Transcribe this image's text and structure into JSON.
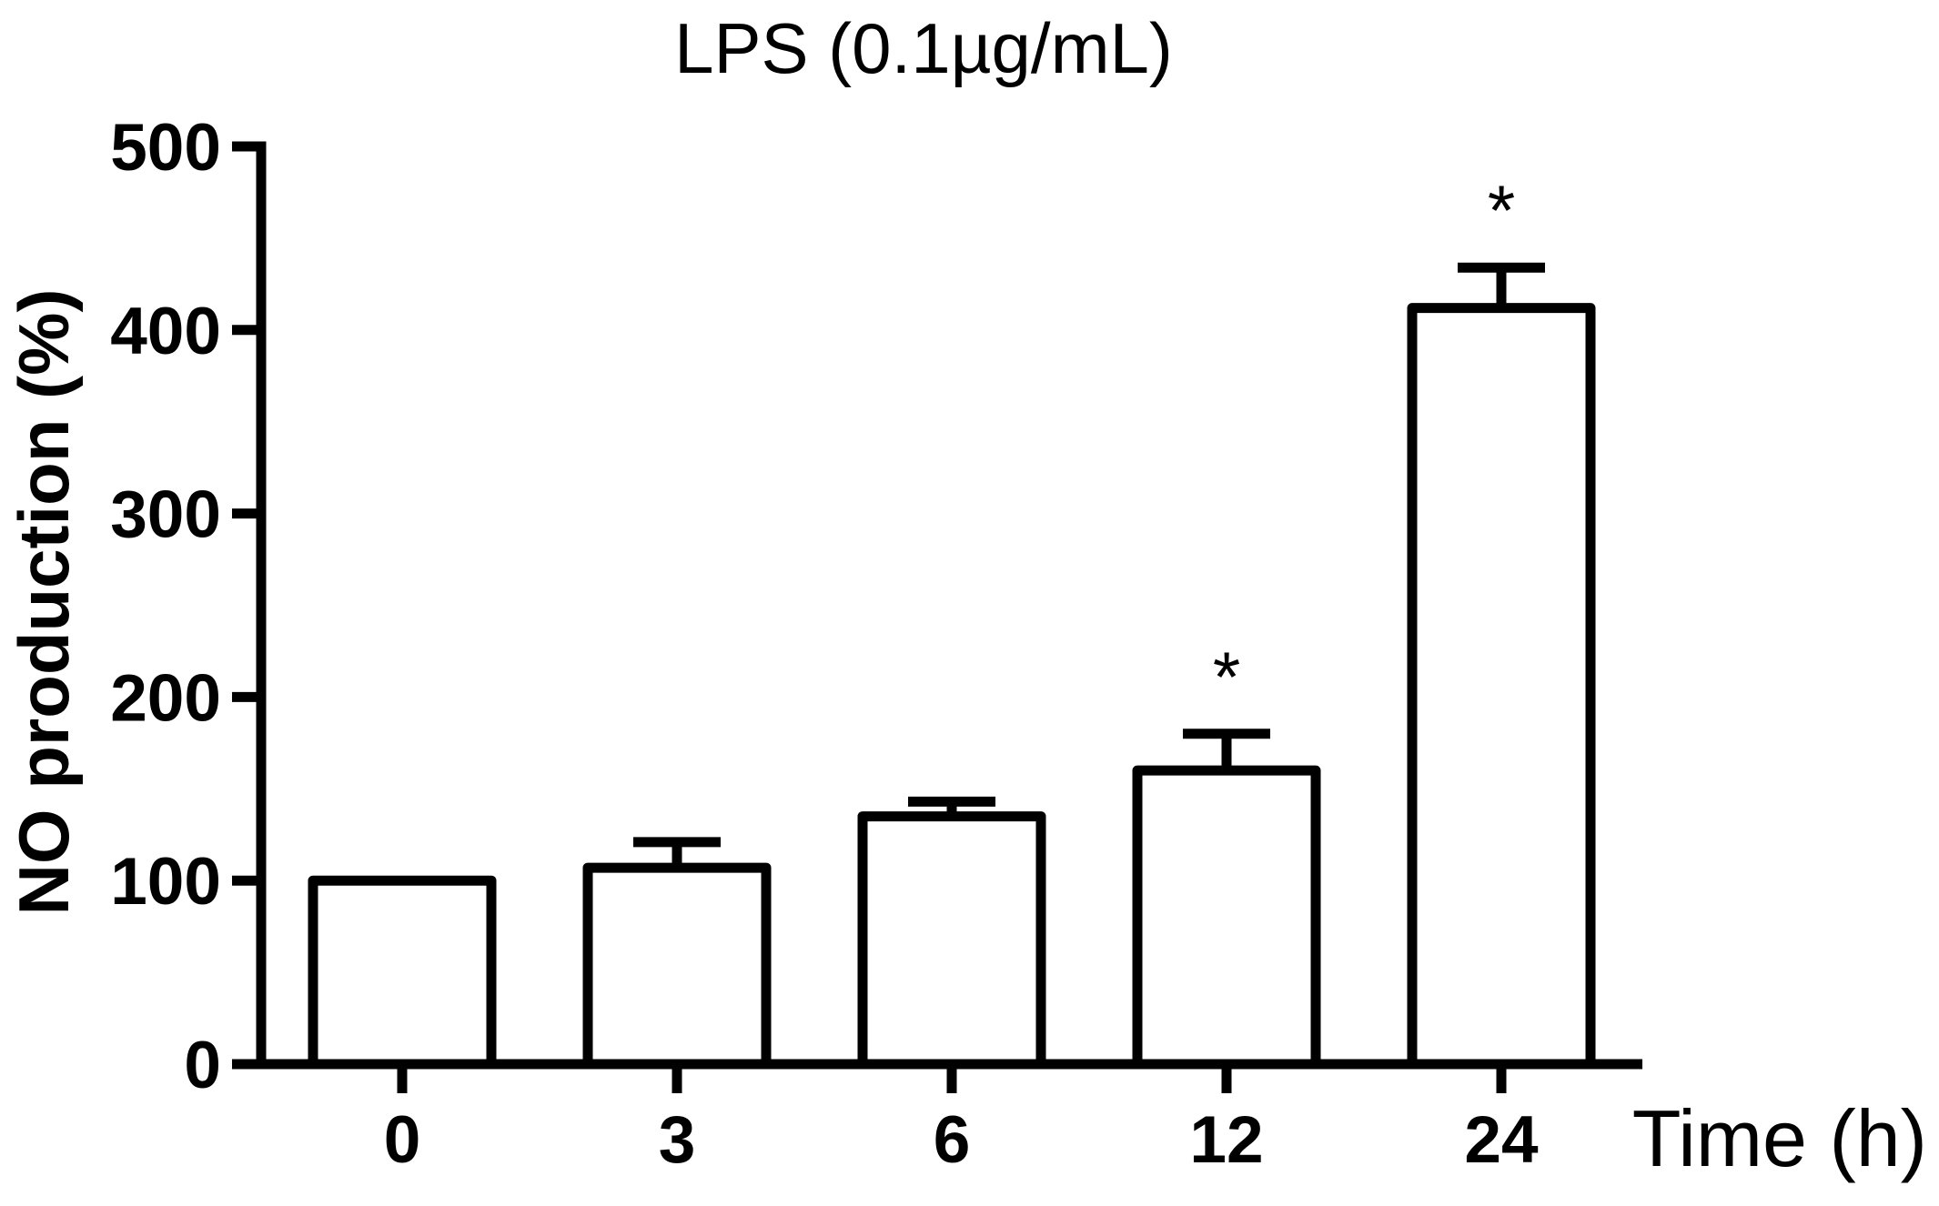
{
  "chart_data": {
    "type": "bar",
    "title": "LPS (0.1µg/mL)",
    "xlabel": "Time (h)",
    "ylabel": "NO production (%)",
    "categories": [
      "0",
      "3",
      "6",
      "12",
      "24"
    ],
    "values": [
      100,
      107,
      135,
      160,
      412
    ],
    "errors": [
      0,
      14,
      8,
      20,
      22
    ],
    "annotations": [
      "",
      "",
      "",
      "*",
      "*"
    ],
    "ylim": [
      0,
      500
    ],
    "yticks": [
      0,
      100,
      200,
      300,
      400,
      500
    ],
    "ytick_labels": [
      "0",
      "100",
      "200",
      "300",
      "400",
      "500"
    ],
    "grid": false,
    "legend": "none",
    "bar_fill": "#ffffff",
    "bar_stroke": "#000000"
  }
}
